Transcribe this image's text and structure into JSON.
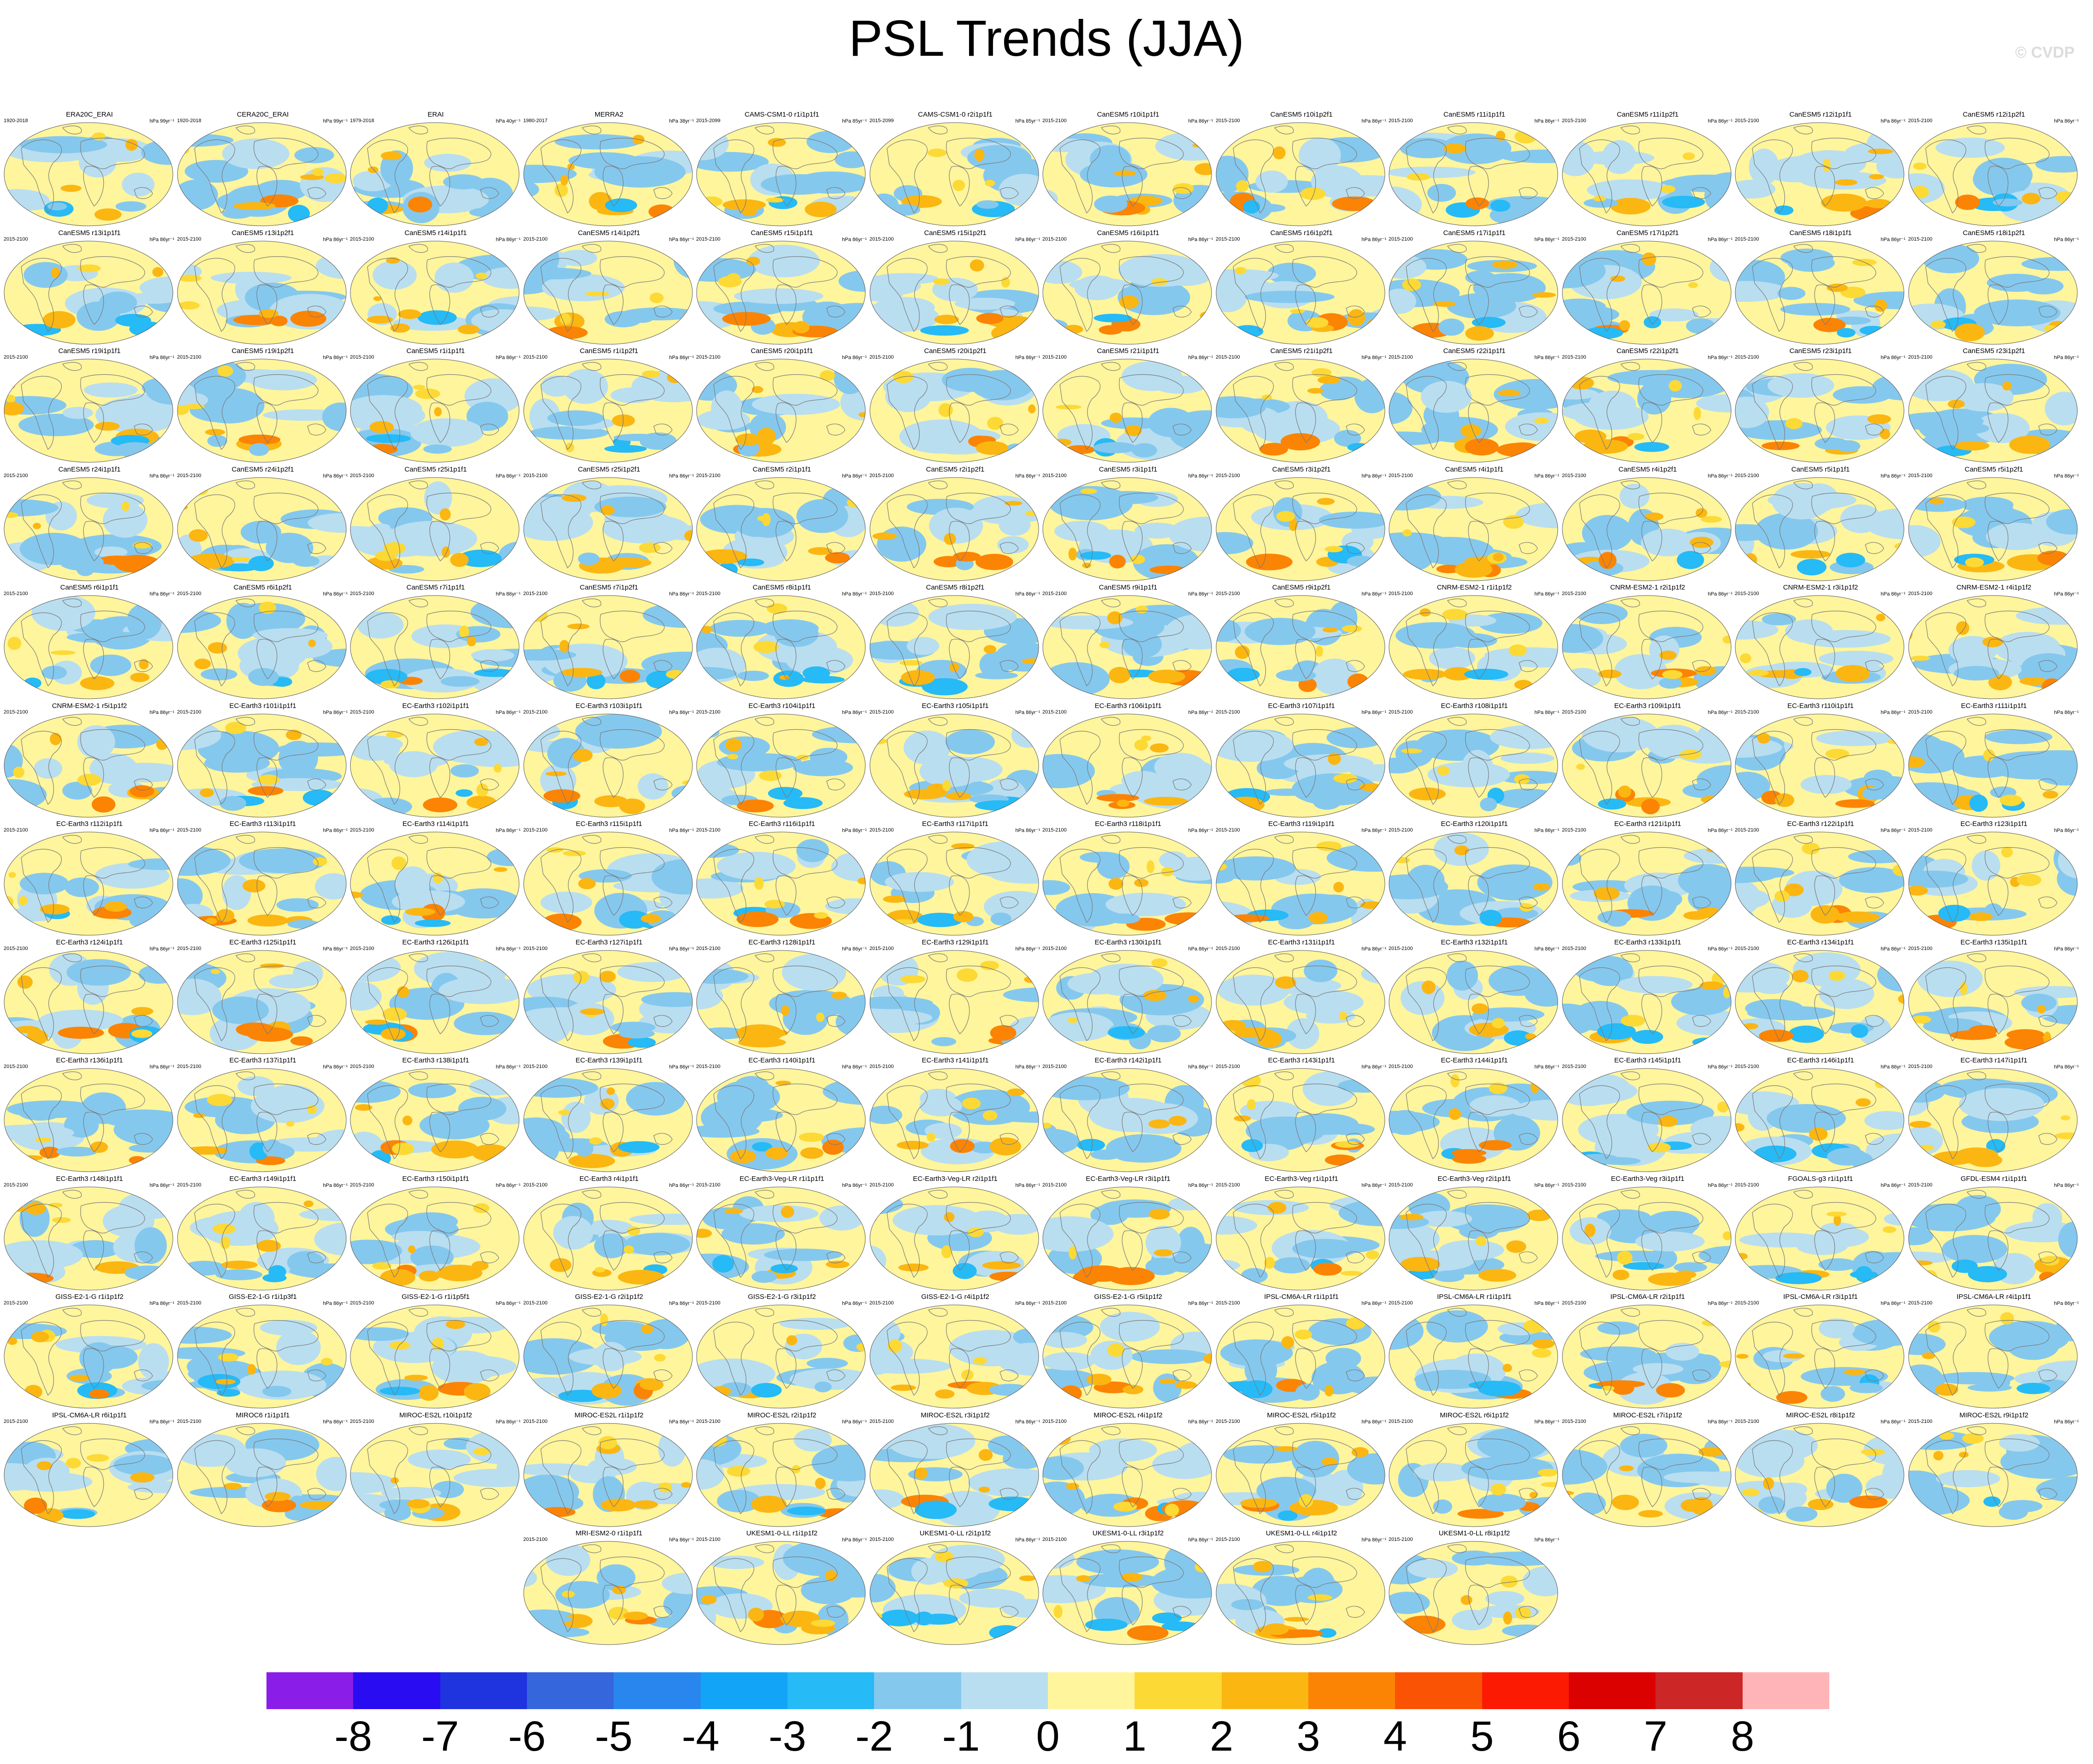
{
  "title": "PSL Trends (JJA)",
  "watermark": "© CVDP",
  "panels": [
    {
      "name": "ERA20C_ERAI",
      "years": "1920-2018",
      "units": "hPa 99yr⁻¹"
    },
    {
      "name": "CERA20C_ERAI",
      "years": "1920-2018",
      "units": "hPa 99yr⁻¹"
    },
    {
      "name": "ERAI",
      "years": "1979-2018",
      "units": "hPa 40yr⁻¹"
    },
    {
      "name": "MERRA2",
      "years": "1980-2017",
      "units": "hPa 38yr⁻¹"
    },
    {
      "name": "CAMS-CSM1-0 r1i1p1f1",
      "years": "2015-2099",
      "units": "hPa 85yr⁻¹"
    },
    {
      "name": "CAMS-CSM1-0 r2i1p1f1",
      "years": "2015-2099",
      "units": "hPa 85yr⁻¹"
    },
    {
      "name": "CanESM5 r10i1p1f1",
      "years": "2015-2100",
      "units": "hPa 86yr⁻¹"
    },
    {
      "name": "CanESM5 r10i1p2f1",
      "years": "2015-2100",
      "units": "hPa 86yr⁻¹"
    },
    {
      "name": "CanESM5 r11i1p1f1",
      "years": "2015-2100",
      "units": "hPa 86yr⁻¹"
    },
    {
      "name": "CanESM5 r11i1p2f1",
      "years": "2015-2100",
      "units": "hPa 86yr⁻¹"
    },
    {
      "name": "CanESM5 r12i1p1f1",
      "years": "2015-2100",
      "units": "hPa 86yr⁻¹"
    },
    {
      "name": "CanESM5 r12i1p2f1",
      "years": "2015-2100",
      "units": "hPa 86yr⁻¹"
    },
    {
      "name": "CanESM5 r13i1p1f1",
      "years": "2015-2100",
      "units": "hPa 86yr⁻¹"
    },
    {
      "name": "CanESM5 r13i1p2f1",
      "years": "2015-2100",
      "units": "hPa 86yr⁻¹"
    },
    {
      "name": "CanESM5 r14i1p1f1",
      "years": "2015-2100",
      "units": "hPa 86yr⁻¹"
    },
    {
      "name": "CanESM5 r14i1p2f1",
      "years": "2015-2100",
      "units": "hPa 86yr⁻¹"
    },
    {
      "name": "CanESM5 r15i1p1f1",
      "years": "2015-2100",
      "units": "hPa 86yr⁻¹"
    },
    {
      "name": "CanESM5 r15i1p2f1",
      "years": "2015-2100",
      "units": "hPa 86yr⁻¹"
    },
    {
      "name": "CanESM5 r16i1p1f1",
      "years": "2015-2100",
      "units": "hPa 86yr⁻¹"
    },
    {
      "name": "CanESM5 r16i1p2f1",
      "years": "2015-2100",
      "units": "hPa 86yr⁻¹"
    },
    {
      "name": "CanESM5 r17i1p1f1",
      "years": "2015-2100",
      "units": "hPa 86yr⁻¹"
    },
    {
      "name": "CanESM5 r17i1p2f1",
      "years": "2015-2100",
      "units": "hPa 86yr⁻¹"
    },
    {
      "name": "CanESM5 r18i1p1f1",
      "years": "2015-2100",
      "units": "hPa 86yr⁻¹"
    },
    {
      "name": "CanESM5 r18i1p2f1",
      "years": "2015-2100",
      "units": "hPa 86yr⁻¹"
    },
    {
      "name": "CanESM5 r19i1p1f1",
      "years": "2015-2100",
      "units": "hPa 86yr⁻¹"
    },
    {
      "name": "CanESM5 r19i1p2f1",
      "years": "2015-2100",
      "units": "hPa 86yr⁻¹"
    },
    {
      "name": "CanESM5 r1i1p1f1",
      "years": "2015-2100",
      "units": "hPa 86yr⁻¹"
    },
    {
      "name": "CanESM5 r1i1p2f1",
      "years": "2015-2100",
      "units": "hPa 86yr⁻¹"
    },
    {
      "name": "CanESM5 r20i1p1f1",
      "years": "2015-2100",
      "units": "hPa 86yr⁻¹"
    },
    {
      "name": "CanESM5 r20i1p2f1",
      "years": "2015-2100",
      "units": "hPa 86yr⁻¹"
    },
    {
      "name": "CanESM5 r21i1p1f1",
      "years": "2015-2100",
      "units": "hPa 86yr⁻¹"
    },
    {
      "name": "CanESM5 r21i1p2f1",
      "years": "2015-2100",
      "units": "hPa 86yr⁻¹"
    },
    {
      "name": "CanESM5 r22i1p1f1",
      "years": "2015-2100",
      "units": "hPa 86yr⁻¹"
    },
    {
      "name": "CanESM5 r22i1p2f1",
      "years": "2015-2100",
      "units": "hPa 86yr⁻¹"
    },
    {
      "name": "CanESM5 r23i1p1f1",
      "years": "2015-2100",
      "units": "hPa 86yr⁻¹"
    },
    {
      "name": "CanESM5 r23i1p2f1",
      "years": "2015-2100",
      "units": "hPa 86yr⁻¹"
    },
    {
      "name": "CanESM5 r24i1p1f1",
      "years": "2015-2100",
      "units": "hPa 86yr⁻¹"
    },
    {
      "name": "CanESM5 r24i1p2f1",
      "years": "2015-2100",
      "units": "hPa 86yr⁻¹"
    },
    {
      "name": "CanESM5 r25i1p1f1",
      "years": "2015-2100",
      "units": "hPa 86yr⁻¹"
    },
    {
      "name": "CanESM5 r25i1p2f1",
      "years": "2015-2100",
      "units": "hPa 86yr⁻¹"
    },
    {
      "name": "CanESM5 r2i1p1f1",
      "years": "2015-2100",
      "units": "hPa 86yr⁻¹"
    },
    {
      "name": "CanESM5 r2i1p2f1",
      "years": "2015-2100",
      "units": "hPa 86yr⁻¹"
    },
    {
      "name": "CanESM5 r3i1p1f1",
      "years": "2015-2100",
      "units": "hPa 86yr⁻¹"
    },
    {
      "name": "CanESM5 r3i1p2f1",
      "years": "2015-2100",
      "units": "hPa 86yr⁻¹"
    },
    {
      "name": "CanESM5 r4i1p1f1",
      "years": "2015-2100",
      "units": "hPa 86yr⁻¹"
    },
    {
      "name": "CanESM5 r4i1p2f1",
      "years": "2015-2100",
      "units": "hPa 86yr⁻¹"
    },
    {
      "name": "CanESM5 r5i1p1f1",
      "years": "2015-2100",
      "units": "hPa 86yr⁻¹"
    },
    {
      "name": "CanESM5 r5i1p2f1",
      "years": "2015-2100",
      "units": "hPa 86yr⁻¹"
    },
    {
      "name": "CanESM5 r6i1p1f1",
      "years": "2015-2100",
      "units": "hPa 86yr⁻¹"
    },
    {
      "name": "CanESM5 r6i1p2f1",
      "years": "2015-2100",
      "units": "hPa 86yr⁻¹"
    },
    {
      "name": "CanESM5 r7i1p1f1",
      "years": "2015-2100",
      "units": "hPa 86yr⁻¹"
    },
    {
      "name": "CanESM5 r7i1p2f1",
      "years": "2015-2100",
      "units": "hPa 86yr⁻¹"
    },
    {
      "name": "CanESM5 r8i1p1f1",
      "years": "2015-2100",
      "units": "hPa 86yr⁻¹"
    },
    {
      "name": "CanESM5 r8i1p2f1",
      "years": "2015-2100",
      "units": "hPa 86yr⁻¹"
    },
    {
      "name": "CanESM5 r9i1p1f1",
      "years": "2015-2100",
      "units": "hPa 86yr⁻¹"
    },
    {
      "name": "CanESM5 r9i1p2f1",
      "years": "2015-2100",
      "units": "hPa 86yr⁻¹"
    },
    {
      "name": "CNRM-ESM2-1 r1i1p1f2",
      "years": "2015-2100",
      "units": "hPa 86yr⁻¹"
    },
    {
      "name": "CNRM-ESM2-1 r2i1p1f2",
      "years": "2015-2100",
      "units": "hPa 86yr⁻¹"
    },
    {
      "name": "CNRM-ESM2-1 r3i1p1f2",
      "years": "2015-2100",
      "units": "hPa 86yr⁻¹"
    },
    {
      "name": "CNRM-ESM2-1 r4i1p1f2",
      "years": "2015-2100",
      "units": "hPa 86yr⁻¹"
    },
    {
      "name": "CNRM-ESM2-1 r5i1p1f2",
      "years": "2015-2100",
      "units": "hPa 86yr⁻¹"
    },
    {
      "name": "EC-Earth3 r101i1p1f1",
      "years": "2015-2100",
      "units": "hPa 86yr⁻¹"
    },
    {
      "name": "EC-Earth3 r102i1p1f1",
      "years": "2015-2100",
      "units": "hPa 86yr⁻¹"
    },
    {
      "name": "EC-Earth3 r103i1p1f1",
      "years": "2015-2100",
      "units": "hPa 86yr⁻¹"
    },
    {
      "name": "EC-Earth3 r104i1p1f1",
      "years": "2015-2100",
      "units": "hPa 86yr⁻¹"
    },
    {
      "name": "EC-Earth3 r105i1p1f1",
      "years": "2015-2100",
      "units": "hPa 86yr⁻¹"
    },
    {
      "name": "EC-Earth3 r106i1p1f1",
      "years": "2015-2100",
      "units": "hPa 86yr⁻¹"
    },
    {
      "name": "EC-Earth3 r107i1p1f1",
      "years": "2015-2100",
      "units": "hPa 86yr⁻¹"
    },
    {
      "name": "EC-Earth3 r108i1p1f1",
      "years": "2015-2100",
      "units": "hPa 86yr⁻¹"
    },
    {
      "name": "EC-Earth3 r109i1p1f1",
      "years": "2015-2100",
      "units": "hPa 86yr⁻¹"
    },
    {
      "name": "EC-Earth3 r110i1p1f1",
      "years": "2015-2100",
      "units": "hPa 86yr⁻¹"
    },
    {
      "name": "EC-Earth3 r111i1p1f1",
      "years": "2015-2100",
      "units": "hPa 86yr⁻¹"
    },
    {
      "name": "EC-Earth3 r112i1p1f1",
      "years": "2015-2100",
      "units": "hPa 86yr⁻¹"
    },
    {
      "name": "EC-Earth3 r113i1p1f1",
      "years": "2015-2100",
      "units": "hPa 86yr⁻¹"
    },
    {
      "name": "EC-Earth3 r114i1p1f1",
      "years": "2015-2100",
      "units": "hPa 86yr⁻¹"
    },
    {
      "name": "EC-Earth3 r115i1p1f1",
      "years": "2015-2100",
      "units": "hPa 86yr⁻¹"
    },
    {
      "name": "EC-Earth3 r116i1p1f1",
      "years": "2015-2100",
      "units": "hPa 86yr⁻¹"
    },
    {
      "name": "EC-Earth3 r117i1p1f1",
      "years": "2015-2100",
      "units": "hPa 86yr⁻¹"
    },
    {
      "name": "EC-Earth3 r118i1p1f1",
      "years": "2015-2100",
      "units": "hPa 86yr⁻¹"
    },
    {
      "name": "EC-Earth3 r119i1p1f1",
      "years": "2015-2100",
      "units": "hPa 86yr⁻¹"
    },
    {
      "name": "EC-Earth3 r120i1p1f1",
      "years": "2015-2100",
      "units": "hPa 86yr⁻¹"
    },
    {
      "name": "EC-Earth3 r121i1p1f1",
      "years": "2015-2100",
      "units": "hPa 86yr⁻¹"
    },
    {
      "name": "EC-Earth3 r122i1p1f1",
      "years": "2015-2100",
      "units": "hPa 86yr⁻¹"
    },
    {
      "name": "EC-Earth3 r123i1p1f1",
      "years": "2015-2100",
      "units": "hPa 86yr⁻¹"
    },
    {
      "name": "EC-Earth3 r124i1p1f1",
      "years": "2015-2100",
      "units": "hPa 86yr⁻¹"
    },
    {
      "name": "EC-Earth3 r125i1p1f1",
      "years": "2015-2100",
      "units": "hPa 86yr⁻¹"
    },
    {
      "name": "EC-Earth3 r126i1p1f1",
      "years": "2015-2100",
      "units": "hPa 86yr⁻¹"
    },
    {
      "name": "EC-Earth3 r127i1p1f1",
      "years": "2015-2100",
      "units": "hPa 86yr⁻¹"
    },
    {
      "name": "EC-Earth3 r128i1p1f1",
      "years": "2015-2100",
      "units": "hPa 86yr⁻¹"
    },
    {
      "name": "EC-Earth3 r129i1p1f1",
      "years": "2015-2100",
      "units": "hPa 86yr⁻¹"
    },
    {
      "name": "EC-Earth3 r130i1p1f1",
      "years": "2015-2100",
      "units": "hPa 86yr⁻¹"
    },
    {
      "name": "EC-Earth3 r131i1p1f1",
      "years": "2015-2100",
      "units": "hPa 86yr⁻¹"
    },
    {
      "name": "EC-Earth3 r132i1p1f1",
      "years": "2015-2100",
      "units": "hPa 86yr⁻¹"
    },
    {
      "name": "EC-Earth3 r133i1p1f1",
      "years": "2015-2100",
      "units": "hPa 86yr⁻¹"
    },
    {
      "name": "EC-Earth3 r134i1p1f1",
      "years": "2015-2100",
      "units": "hPa 86yr⁻¹"
    },
    {
      "name": "EC-Earth3 r135i1p1f1",
      "years": "2015-2100",
      "units": "hPa 86yr⁻¹"
    },
    {
      "name": "EC-Earth3 r136i1p1f1",
      "years": "2015-2100",
      "units": "hPa 86yr⁻¹"
    },
    {
      "name": "EC-Earth3 r137i1p1f1",
      "years": "2015-2100",
      "units": "hPa 86yr⁻¹"
    },
    {
      "name": "EC-Earth3 r138i1p1f1",
      "years": "2015-2100",
      "units": "hPa 86yr⁻¹"
    },
    {
      "name": "EC-Earth3 r139i1p1f1",
      "years": "2015-2100",
      "units": "hPa 86yr⁻¹"
    },
    {
      "name": "EC-Earth3 r140i1p1f1",
      "years": "2015-2100",
      "units": "hPa 86yr⁻¹"
    },
    {
      "name": "EC-Earth3 r141i1p1f1",
      "years": "2015-2100",
      "units": "hPa 86yr⁻¹"
    },
    {
      "name": "EC-Earth3 r142i1p1f1",
      "years": "2015-2100",
      "units": "hPa 86yr⁻¹"
    },
    {
      "name": "EC-Earth3 r143i1p1f1",
      "years": "2015-2100",
      "units": "hPa 86yr⁻¹"
    },
    {
      "name": "EC-Earth3 r144i1p1f1",
      "years": "2015-2100",
      "units": "hPa 86yr⁻¹"
    },
    {
      "name": "EC-Earth3 r145i1p1f1",
      "years": "2015-2100",
      "units": "hPa 86yr⁻¹"
    },
    {
      "name": "EC-Earth3 r146i1p1f1",
      "years": "2015-2100",
      "units": "hPa 86yr⁻¹"
    },
    {
      "name": "EC-Earth3 r147i1p1f1",
      "years": "2015-2100",
      "units": "hPa 86yr⁻¹"
    },
    {
      "name": "EC-Earth3 r148i1p1f1",
      "years": "2015-2100",
      "units": "hPa 86yr⁻¹"
    },
    {
      "name": "EC-Earth3 r149i1p1f1",
      "years": "2015-2100",
      "units": "hPa 86yr⁻¹"
    },
    {
      "name": "EC-Earth3 r150i1p1f1",
      "years": "2015-2100",
      "units": "hPa 86yr⁻¹"
    },
    {
      "name": "EC-Earth3 r4i1p1f1",
      "years": "2015-2100",
      "units": "hPa 86yr⁻¹"
    },
    {
      "name": "EC-Earth3-Veg-LR r1i1p1f1",
      "years": "2015-2100",
      "units": "hPa 86yr⁻¹"
    },
    {
      "name": "EC-Earth3-Veg-LR r2i1p1f1",
      "years": "2015-2100",
      "units": "hPa 86yr⁻¹"
    },
    {
      "name": "EC-Earth3-Veg-LR r3i1p1f1",
      "years": "2015-2100",
      "units": "hPa 86yr⁻¹"
    },
    {
      "name": "EC-Earth3-Veg r1i1p1f1",
      "years": "2015-2100",
      "units": "hPa 86yr⁻¹"
    },
    {
      "name": "EC-Earth3-Veg r2i1p1f1",
      "years": "2015-2100",
      "units": "hPa 86yr⁻¹"
    },
    {
      "name": "EC-Earth3-Veg r3i1p1f1",
      "years": "2015-2100",
      "units": "hPa 86yr⁻¹"
    },
    {
      "name": "FGOALS-g3 r1i1p1f1",
      "years": "2015-2100",
      "units": "hPa 86yr⁻¹"
    },
    {
      "name": "GFDL-ESM4 r1i1p1f1",
      "years": "2015-2100",
      "units": "hPa 86yr⁻¹"
    },
    {
      "name": "GISS-E2-1-G r1i1p1f2",
      "years": "2015-2100",
      "units": "hPa 86yr⁻¹"
    },
    {
      "name": "GISS-E2-1-G r1i1p3f1",
      "years": "2015-2100",
      "units": "hPa 86yr⁻¹"
    },
    {
      "name": "GISS-E2-1-G r1i1p5f1",
      "years": "2015-2100",
      "units": "hPa 86yr⁻¹"
    },
    {
      "name": "GISS-E2-1-G r2i1p1f2",
      "years": "2015-2100",
      "units": "hPa 86yr⁻¹"
    },
    {
      "name": "GISS-E2-1-G r3i1p1f2",
      "years": "2015-2100",
      "units": "hPa 86yr⁻¹"
    },
    {
      "name": "GISS-E2-1-G r4i1p1f2",
      "years": "2015-2100",
      "units": "hPa 86yr⁻¹"
    },
    {
      "name": "GISS-E2-1-G r5i1p1f2",
      "years": "2015-2100",
      "units": "hPa 86yr⁻¹"
    },
    {
      "name": "IPSL-CM6A-LR r1i1p1f1",
      "years": "2015-2100",
      "units": "hPa 86yr⁻¹"
    },
    {
      "name": "IPSL-CM6A-LR r1i1p1f1",
      "years": "2015-2100",
      "units": "hPa 86yr⁻¹"
    },
    {
      "name": "IPSL-CM6A-LR r2i1p1f1",
      "years": "2015-2100",
      "units": "hPa 86yr⁻¹"
    },
    {
      "name": "IPSL-CM6A-LR r3i1p1f1",
      "years": "2015-2100",
      "units": "hPa 86yr⁻¹"
    },
    {
      "name": "IPSL-CM6A-LR r4i1p1f1",
      "years": "2015-2100",
      "units": "hPa 86yr⁻¹"
    },
    {
      "name": "IPSL-CM6A-LR r6i1p1f1",
      "years": "2015-2100",
      "units": "hPa 86yr⁻¹"
    },
    {
      "name": "MIROC6 r1i1p1f1",
      "years": "2015-2100",
      "units": "hPa 86yr⁻¹"
    },
    {
      "name": "MIROC-ES2L r10i1p1f2",
      "years": "2015-2100",
      "units": "hPa 86yr⁻¹"
    },
    {
      "name": "MIROC-ES2L r1i1p1f2",
      "years": "2015-2100",
      "units": "hPa 86yr⁻¹"
    },
    {
      "name": "MIROC-ES2L r2i1p1f2",
      "years": "2015-2100",
      "units": "hPa 86yr⁻¹"
    },
    {
      "name": "MIROC-ES2L r3i1p1f2",
      "years": "2015-2100",
      "units": "hPa 86yr⁻¹"
    },
    {
      "name": "MIROC-ES2L r4i1p1f2",
      "years": "2015-2100",
      "units": "hPa 86yr⁻¹"
    },
    {
      "name": "MIROC-ES2L r5i1p1f2",
      "years": "2015-2100",
      "units": "hPa 86yr⁻¹"
    },
    {
      "name": "MIROC-ES2L r6i1p1f2",
      "years": "2015-2100",
      "units": "hPa 86yr⁻¹"
    },
    {
      "name": "MIROC-ES2L r7i1p1f2",
      "years": "2015-2100",
      "units": "hPa 86yr⁻¹"
    },
    {
      "name": "MIROC-ES2L r8i1p1f2",
      "years": "2015-2100",
      "units": "hPa 86yr⁻¹"
    },
    {
      "name": "MIROC-ES2L r9i1p1f2",
      "years": "2015-2100",
      "units": "hPa 86yr⁻¹"
    },
    {
      "name": "MRI-ESM2-0 r1i1p1f1",
      "years": "2015-2100",
      "units": "hPa 86yr⁻¹"
    },
    {
      "name": "UKESM1-0-LL r1i1p1f2",
      "years": "2015-2100",
      "units": "hPa 86yr⁻¹"
    },
    {
      "name": "UKESM1-0-LL r2i1p1f2",
      "years": "2015-2100",
      "units": "hPa 86yr⁻¹"
    },
    {
      "name": "UKESM1-0-LL r3i1p1f2",
      "years": "2015-2100",
      "units": "hPa 86yr⁻¹"
    },
    {
      "name": "UKESM1-0-LL r4i1p1f2",
      "years": "2015-2100",
      "units": "hPa 86yr⁻¹"
    },
    {
      "name": "UKESM1-0-LL r8i1p1f2",
      "years": "2015-2100",
      "units": "hPa 86yr⁻¹"
    }
  ],
  "colorbar": {
    "colors": [
      "#8a1de8",
      "#2a0cf2",
      "#1f33df",
      "#3566dc",
      "#2a86ef",
      "#12a4f7",
      "#26baf6",
      "#85c8ee",
      "#b9def0",
      "#fff59c",
      "#fcd935",
      "#fbb612",
      "#fb8405",
      "#fb5304",
      "#fc1a02",
      "#db0101",
      "#cd2626",
      "#ffb5b8"
    ],
    "labels": [
      "-8",
      "-7",
      "-6",
      "-5",
      "-4",
      "-3",
      "-2",
      "-1",
      "0",
      "1",
      "2",
      "3",
      "4",
      "5",
      "6",
      "7",
      "8"
    ]
  }
}
